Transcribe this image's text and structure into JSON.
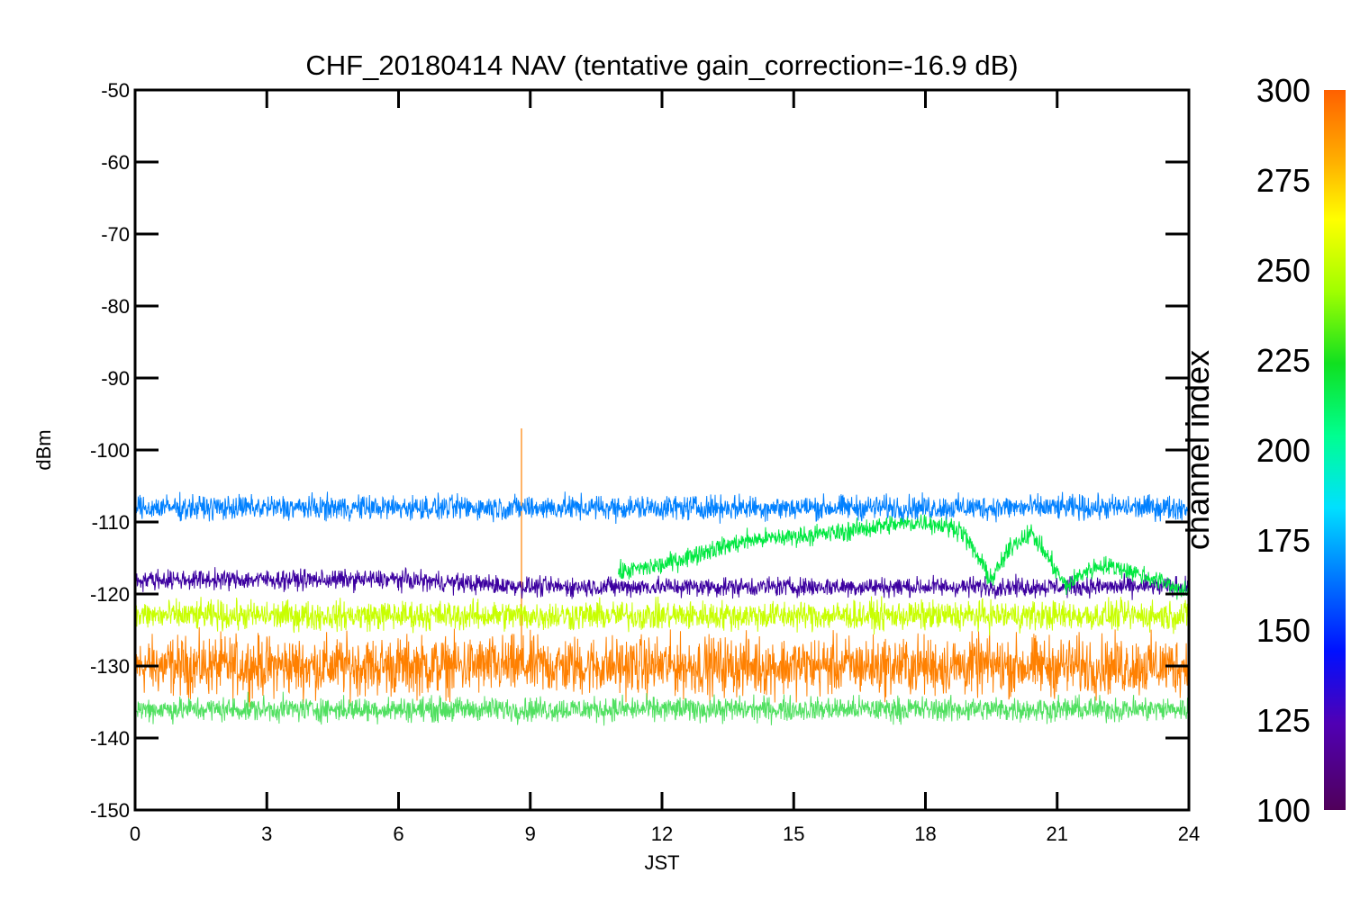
{
  "chart_data": {
    "type": "line",
    "title": "CHF_20180414 NAV (tentative gain_correction=-16.9 dB)",
    "xlabel": "JST",
    "ylabel": "dBm",
    "xlim": [
      0,
      24
    ],
    "ylim": [
      -150,
      -50
    ],
    "xticks": [
      "0",
      "3",
      "6",
      "9",
      "12",
      "15",
      "18",
      "21",
      "24"
    ],
    "yticks": [
      "-50",
      "-60",
      "-70",
      "-80",
      "-90",
      "-100",
      "-110",
      "-120",
      "-130",
      "-140",
      "-150"
    ],
    "grid": false,
    "colorbar": {
      "label": "channel index",
      "range": [
        100,
        300
      ],
      "ticks": [
        "100",
        "125",
        "150",
        "175",
        "200",
        "225",
        "250",
        "275",
        "300"
      ],
      "colormap": "rainbow"
    },
    "series": [
      {
        "color": "#ff8000",
        "description": "dense noise band",
        "x": [
          0,
          3,
          6,
          9,
          12,
          15,
          18,
          21,
          24
        ],
        "y_mean": [
          -130,
          -130,
          -130,
          -130,
          -130,
          -130,
          -130,
          -130,
          -130
        ],
        "y_spread": 6,
        "spike": {
          "x": 8.8,
          "y": -97
        }
      },
      {
        "color": "#c8ff00",
        "description": "yellow-green band",
        "x": [
          0,
          3,
          6,
          9,
          12,
          15,
          18,
          21,
          24
        ],
        "y_mean": [
          -123,
          -123,
          -123,
          -123,
          -123,
          -123,
          -123,
          -123,
          -123
        ],
        "y_spread": 3
      },
      {
        "color": "#50e060",
        "description": "lower edge band",
        "x": [
          0,
          3,
          6,
          9,
          12,
          15,
          18,
          21,
          24
        ],
        "y_mean": [
          -136,
          -136,
          -136,
          -136,
          -136,
          -136,
          -136,
          -136,
          -136
        ],
        "y_spread": 2.5
      },
      {
        "color": "#3c00a0",
        "description": "purple band",
        "x": [
          0,
          3,
          6,
          9,
          12,
          15,
          18,
          21,
          24
        ],
        "y_mean": [
          -118,
          -118,
          -118,
          -119,
          -119,
          -119,
          -119,
          -119,
          -119
        ],
        "y_spread": 2
      },
      {
        "color": "#00e840",
        "description": "green daytime band",
        "x": [
          11,
          12,
          13,
          14,
          15,
          16,
          17,
          18,
          18.8,
          19.5,
          20.0,
          20.4,
          20.8,
          21.2,
          21.6,
          22.0,
          22.5,
          23.0,
          23.5,
          24
        ],
        "y_mean": [
          -117,
          -116,
          -114,
          -112.5,
          -112,
          -111.5,
          -110.5,
          -110,
          -111,
          -118,
          -113,
          -111.5,
          -115,
          -119,
          -117,
          -116,
          -116.5,
          -117.5,
          -118.5,
          -120
        ],
        "y_spread": 2
      },
      {
        "color": "#0080ff",
        "description": "blue top band",
        "x": [
          0,
          3,
          6,
          9,
          12,
          15,
          18,
          21,
          24
        ],
        "y_mean": [
          -108,
          -108,
          -108,
          -108,
          -108,
          -108,
          -108,
          -108,
          -108
        ],
        "y_spread": 2.5
      }
    ]
  }
}
